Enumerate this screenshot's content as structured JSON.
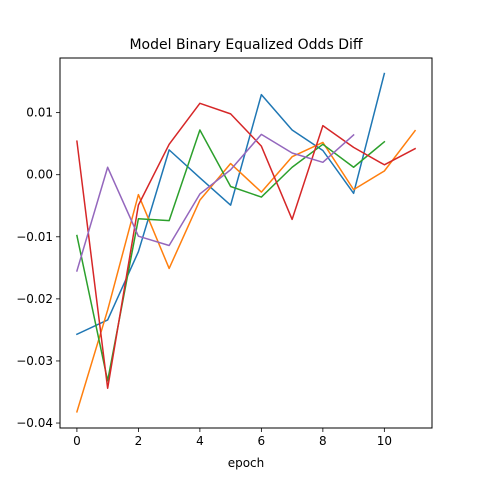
{
  "chart_data": {
    "type": "line",
    "title": "Model Binary Equalized Odds Diff",
    "xlabel": "epoch",
    "ylabel": "",
    "xlim": [
      -0.55,
      11.55
    ],
    "ylim": [
      -0.0408,
      0.0188
    ],
    "xticks": [
      0,
      2,
      4,
      6,
      8,
      10
    ],
    "yticks": [
      -0.04,
      -0.03,
      -0.02,
      -0.01,
      0.0,
      0.01
    ],
    "xtick_labels": [
      "0",
      "2",
      "4",
      "6",
      "8",
      "10"
    ],
    "ytick_labels": [
      "−0.04",
      "−0.03",
      "−0.02",
      "−0.01",
      "0.00",
      "0.01"
    ],
    "grid": false,
    "series": [
      {
        "color": "#1f77b4",
        "x": [
          0,
          1,
          2,
          3,
          4,
          5,
          6,
          7,
          8,
          9,
          10
        ],
        "y": [
          -0.0257,
          -0.0234,
          -0.0124,
          0.004,
          -0.0005,
          -0.0049,
          0.0129,
          0.0072,
          0.0039,
          -0.003,
          0.0163
        ]
      },
      {
        "color": "#ff7f0e",
        "x": [
          0,
          1,
          2,
          3,
          4,
          5,
          6,
          7,
          8,
          9,
          10,
          11
        ],
        "y": [
          -0.0382,
          -0.0218,
          -0.0032,
          -0.0151,
          -0.0041,
          0.0018,
          -0.0028,
          0.0029,
          0.0052,
          -0.0024,
          0.0006,
          0.0071
        ]
      },
      {
        "color": "#2ca02c",
        "x": [
          0,
          1,
          2,
          3,
          4,
          5,
          6,
          7,
          8,
          9,
          10
        ],
        "y": [
          -0.0098,
          -0.0332,
          -0.0071,
          -0.0074,
          0.0072,
          -0.0019,
          -0.0036,
          0.0012,
          0.0049,
          0.0012,
          0.0053
        ]
      },
      {
        "color": "#d62728",
        "x": [
          0,
          1,
          2,
          3,
          4,
          5,
          6,
          7,
          8,
          9,
          10,
          11
        ],
        "y": [
          0.0054,
          -0.0344,
          -0.0049,
          0.0049,
          0.0115,
          0.0098,
          0.0046,
          -0.0072,
          0.0079,
          0.0044,
          0.0016,
          0.0042
        ]
      },
      {
        "color": "#9467bd",
        "x": [
          0,
          1,
          2,
          3,
          4,
          5,
          6,
          7,
          8,
          9
        ],
        "y": [
          -0.0155,
          0.0012,
          -0.0099,
          -0.0114,
          -0.0031,
          0.0008,
          0.0065,
          0.0035,
          0.002,
          0.0064
        ]
      }
    ]
  }
}
